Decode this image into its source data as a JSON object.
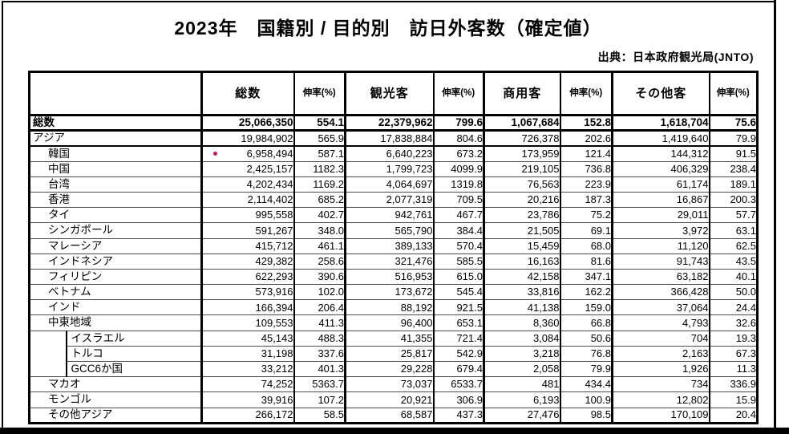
{
  "page": {
    "title": "2023年　国籍別 / 目的別　訪日外客数（確定値）",
    "source": "出典：日本政府観光局(JNTO)"
  },
  "table": {
    "marker_color": "#c0195e",
    "columns": [
      "総数",
      "伸率(%)",
      "観光客",
      "伸率(%)",
      "商用客",
      "伸率(%)",
      "その他客",
      "伸率(%)"
    ],
    "rows": [
      {
        "name": "総数",
        "indent": 0,
        "values": [
          "25,066,350",
          "554.1",
          "22,379,962",
          "799.6",
          "1,067,684",
          "152.8",
          "1,618,704",
          "75.6"
        ]
      },
      {
        "name": "アジア",
        "indent": 0,
        "values": [
          "19,984,902",
          "565.9",
          "17,838,884",
          "804.6",
          "726,378",
          "202.6",
          "1,419,640",
          "79.9"
        ]
      },
      {
        "name": "韓国",
        "indent": 1,
        "marker": true,
        "values": [
          "6,958,494",
          "587.1",
          "6,640,223",
          "673.2",
          "173,959",
          "121.4",
          "144,312",
          "91.5"
        ]
      },
      {
        "name": "中国",
        "indent": 1,
        "values": [
          "2,425,157",
          "1182.3",
          "1,799,723",
          "4099.9",
          "219,105",
          "736.8",
          "406,329",
          "238.4"
        ]
      },
      {
        "name": "台湾",
        "indent": 1,
        "values": [
          "4,202,434",
          "1169.2",
          "4,064,697",
          "1319.8",
          "76,563",
          "223.9",
          "61,174",
          "189.1"
        ]
      },
      {
        "name": "香港",
        "indent": 1,
        "values": [
          "2,114,402",
          "685.2",
          "2,077,319",
          "709.5",
          "20,216",
          "187.3",
          "16,867",
          "200.3"
        ]
      },
      {
        "name": "タイ",
        "indent": 1,
        "values": [
          "995,558",
          "402.7",
          "942,761",
          "467.7",
          "23,786",
          "75.2",
          "29,011",
          "57.7"
        ]
      },
      {
        "name": "シンガポール",
        "indent": 1,
        "values": [
          "591,267",
          "348.0",
          "565,790",
          "384.4",
          "21,505",
          "69.1",
          "3,972",
          "63.1"
        ]
      },
      {
        "name": "マレーシア",
        "indent": 1,
        "values": [
          "415,712",
          "461.1",
          "389,133",
          "570.4",
          "15,459",
          "68.0",
          "11,120",
          "62.5"
        ]
      },
      {
        "name": "インドネシア",
        "indent": 1,
        "values": [
          "429,382",
          "258.6",
          "321,476",
          "585.5",
          "16,163",
          "81.6",
          "91,743",
          "43.5"
        ]
      },
      {
        "name": "フィリピン",
        "indent": 1,
        "values": [
          "622,293",
          "390.6",
          "516,953",
          "615.0",
          "42,158",
          "347.1",
          "63,182",
          "40.1"
        ]
      },
      {
        "name": "ベトナム",
        "indent": 1,
        "values": [
          "573,916",
          "102.0",
          "173,672",
          "545.4",
          "33,816",
          "162.2",
          "366,428",
          "50.0"
        ]
      },
      {
        "name": "インド",
        "indent": 1,
        "values": [
          "166,394",
          "206.4",
          "88,192",
          "921.5",
          "41,138",
          "159.0",
          "37,064",
          "24.4"
        ]
      },
      {
        "name": "中東地域",
        "indent": 1,
        "values": [
          "109,553",
          "411.3",
          "96,400",
          "653.1",
          "8,360",
          "66.8",
          "4,793",
          "32.6"
        ]
      },
      {
        "name": "イスラエル",
        "indent": 2,
        "values": [
          "45,143",
          "488.3",
          "41,355",
          "721.4",
          "3,084",
          "50.6",
          "704",
          "19.3"
        ]
      },
      {
        "name": "トルコ",
        "indent": 2,
        "values": [
          "31,198",
          "337.6",
          "25,817",
          "542.9",
          "3,218",
          "76.8",
          "2,163",
          "67.3"
        ]
      },
      {
        "name": "GCC6か国",
        "indent": 2,
        "values": [
          "33,212",
          "401.3",
          "29,228",
          "679.4",
          "2,058",
          "79.9",
          "1,926",
          "11.3"
        ]
      },
      {
        "name": "マカオ",
        "indent": 1,
        "values": [
          "74,252",
          "5363.7",
          "73,037",
          "6533.7",
          "481",
          "434.4",
          "734",
          "336.9"
        ]
      },
      {
        "name": "モンゴル",
        "indent": 1,
        "values": [
          "39,916",
          "107.2",
          "20,921",
          "306.9",
          "6,193",
          "100.9",
          "12,802",
          "15.9"
        ]
      },
      {
        "name": "その他アジア",
        "indent": 1,
        "values": [
          "266,172",
          "58.5",
          "68,587",
          "437.3",
          "27,476",
          "98.5",
          "170,109",
          "20.4"
        ]
      }
    ]
  }
}
